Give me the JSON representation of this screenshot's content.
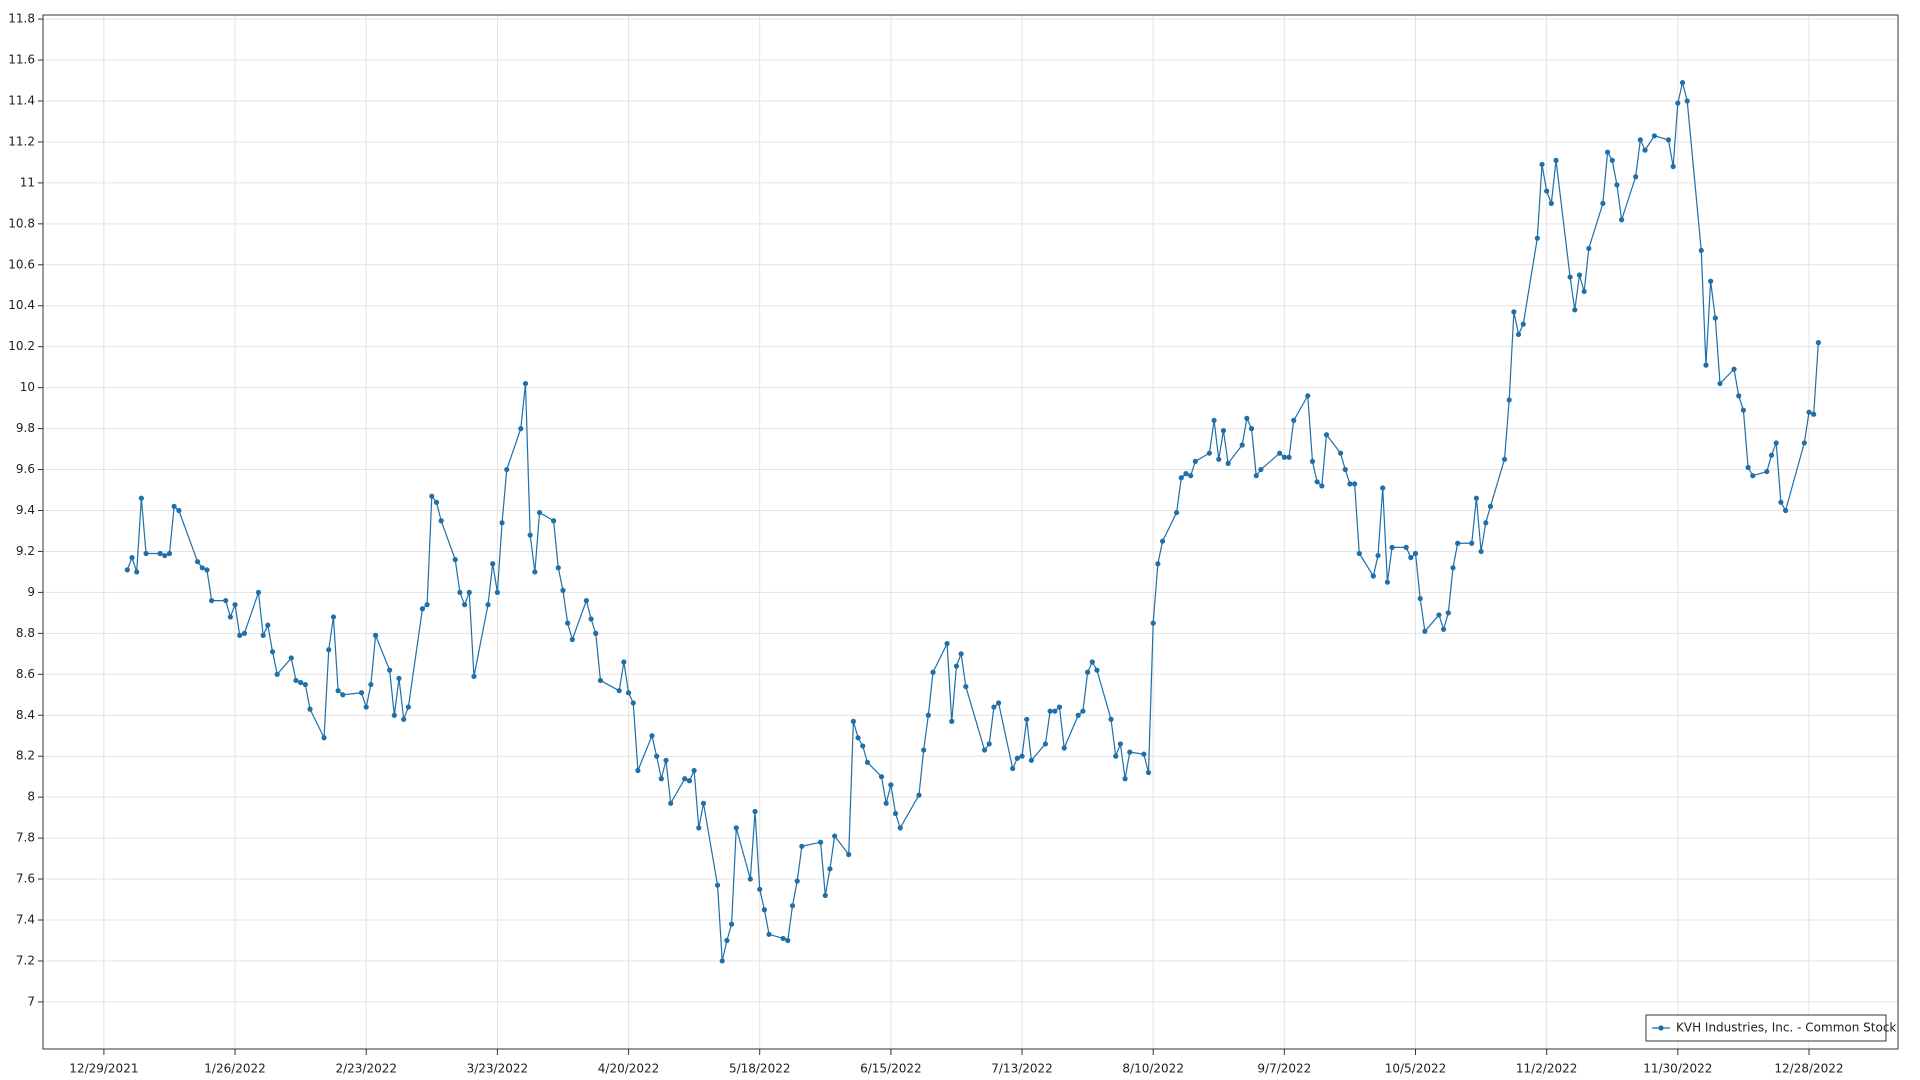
{
  "chart_data": {
    "type": "line",
    "x": [
      "1/3/2022",
      "1/4/2022",
      "1/5/2022",
      "1/6/2022",
      "1/7/2022",
      "1/10/2022",
      "1/11/2022",
      "1/12/2022",
      "1/13/2022",
      "1/14/2022",
      "1/18/2022",
      "1/19/2022",
      "1/20/2022",
      "1/21/2022",
      "1/24/2022",
      "1/25/2022",
      "1/26/2022",
      "1/27/2022",
      "1/28/2022",
      "1/31/2022",
      "2/1/2022",
      "2/2/2022",
      "2/3/2022",
      "2/4/2022",
      "2/7/2022",
      "2/8/2022",
      "2/9/2022",
      "2/10/2022",
      "2/11/2022",
      "2/14/2022",
      "2/15/2022",
      "2/16/2022",
      "2/17/2022",
      "2/18/2022",
      "2/22/2022",
      "2/23/2022",
      "2/24/2022",
      "2/25/2022",
      "2/28/2022",
      "3/1/2022",
      "3/2/2022",
      "3/3/2022",
      "3/4/2022",
      "3/7/2022",
      "3/8/2022",
      "3/9/2022",
      "3/10/2022",
      "3/11/2022",
      "3/14/2022",
      "3/15/2022",
      "3/16/2022",
      "3/17/2022",
      "3/18/2022",
      "3/21/2022",
      "3/22/2022",
      "3/23/2022",
      "3/24/2022",
      "3/25/2022",
      "3/28/2022",
      "3/29/2022",
      "3/30/2022",
      "3/31/2022",
      "4/1/2022",
      "4/4/2022",
      "4/5/2022",
      "4/6/2022",
      "4/7/2022",
      "4/8/2022",
      "4/11/2022",
      "4/12/2022",
      "4/13/2022",
      "4/14/2022",
      "4/18/2022",
      "4/19/2022",
      "4/20/2022",
      "4/21/2022",
      "4/22/2022",
      "4/25/2022",
      "4/26/2022",
      "4/27/2022",
      "4/28/2022",
      "4/29/2022",
      "5/2/2022",
      "5/3/2022",
      "5/4/2022",
      "5/5/2022",
      "5/6/2022",
      "5/9/2022",
      "5/10/2022",
      "5/11/2022",
      "5/12/2022",
      "5/13/2022",
      "5/16/2022",
      "5/17/2022",
      "5/18/2022",
      "5/19/2022",
      "5/20/2022",
      "5/23/2022",
      "5/24/2022",
      "5/25/2022",
      "5/26/2022",
      "5/27/2022",
      "5/31/2022",
      "6/1/2022",
      "6/2/2022",
      "6/3/2022",
      "6/6/2022",
      "6/7/2022",
      "6/8/2022",
      "6/9/2022",
      "6/10/2022",
      "6/13/2022",
      "6/14/2022",
      "6/15/2022",
      "6/16/2022",
      "6/17/2022",
      "6/21/2022",
      "6/22/2022",
      "6/23/2022",
      "6/24/2022",
      "6/27/2022",
      "6/28/2022",
      "6/29/2022",
      "6/30/2022",
      "7/1/2022",
      "7/5/2022",
      "7/6/2022",
      "7/7/2022",
      "7/8/2022",
      "7/11/2022",
      "7/12/2022",
      "7/13/2022",
      "7/14/2022",
      "7/15/2022",
      "7/18/2022",
      "7/19/2022",
      "7/20/2022",
      "7/21/2022",
      "7/22/2022",
      "7/25/2022",
      "7/26/2022",
      "7/27/2022",
      "7/28/2022",
      "7/29/2022",
      "8/1/2022",
      "8/2/2022",
      "8/3/2022",
      "8/4/2022",
      "8/5/2022",
      "8/8/2022",
      "8/9/2022",
      "8/10/2022",
      "8/11/2022",
      "8/12/2022",
      "8/15/2022",
      "8/16/2022",
      "8/17/2022",
      "8/18/2022",
      "8/19/2022",
      "8/22/2022",
      "8/23/2022",
      "8/24/2022",
      "8/25/2022",
      "8/26/2022",
      "8/29/2022",
      "8/30/2022",
      "8/31/2022",
      "9/1/2022",
      "9/2/2022",
      "9/6/2022",
      "9/7/2022",
      "9/8/2022",
      "9/9/2022",
      "9/12/2022",
      "9/13/2022",
      "9/14/2022",
      "9/15/2022",
      "9/16/2022",
      "9/19/2022",
      "9/20/2022",
      "9/21/2022",
      "9/22/2022",
      "9/23/2022",
      "9/26/2022",
      "9/27/2022",
      "9/28/2022",
      "9/29/2022",
      "9/30/2022",
      "10/3/2022",
      "10/4/2022",
      "10/5/2022",
      "10/6/2022",
      "10/7/2022",
      "10/10/2022",
      "10/11/2022",
      "10/12/2022",
      "10/13/2022",
      "10/14/2022",
      "10/17/2022",
      "10/18/2022",
      "10/19/2022",
      "10/20/2022",
      "10/21/2022",
      "10/24/2022",
      "10/25/2022",
      "10/26/2022",
      "10/27/2022",
      "10/28/2022",
      "10/31/2022",
      "11/1/2022",
      "11/2/2022",
      "11/3/2022",
      "11/4/2022",
      "11/7/2022",
      "11/8/2022",
      "11/9/2022",
      "11/10/2022",
      "11/11/2022",
      "11/14/2022",
      "11/15/2022",
      "11/16/2022",
      "11/17/2022",
      "11/18/2022",
      "11/21/2022",
      "11/22/2022",
      "11/23/2022",
      "11/25/2022",
      "11/28/2022",
      "11/29/2022",
      "11/30/2022",
      "12/1/2022",
      "12/2/2022",
      "12/5/2022",
      "12/6/2022",
      "12/7/2022",
      "12/8/2022",
      "12/9/2022",
      "12/12/2022",
      "12/13/2022",
      "12/14/2022",
      "12/15/2022",
      "12/16/2022",
      "12/19/2022",
      "12/20/2022",
      "12/21/2022",
      "12/22/2022",
      "12/23/2022",
      "12/27/2022",
      "12/28/2022",
      "12/29/2022",
      "12/30/2022"
    ],
    "series": [
      {
        "name": "KVH Industries, Inc. - Common Stock",
        "color": "#1f6fa8",
        "values": [
          9.11,
          9.17,
          9.1,
          9.46,
          9.19,
          9.19,
          9.18,
          9.19,
          9.42,
          9.4,
          9.15,
          9.12,
          9.11,
          8.96,
          8.96,
          8.88,
          8.94,
          8.79,
          8.8,
          9.0,
          8.79,
          8.84,
          8.71,
          8.6,
          8.68,
          8.57,
          8.56,
          8.55,
          8.43,
          8.29,
          8.72,
          8.88,
          8.52,
          8.5,
          8.51,
          8.44,
          8.55,
          8.79,
          8.62,
          8.4,
          8.58,
          8.38,
          8.44,
          8.92,
          8.94,
          9.47,
          9.44,
          9.35,
          9.16,
          9.0,
          8.94,
          9.0,
          8.59,
          8.94,
          9.14,
          9.0,
          9.34,
          9.6,
          9.8,
          10.02,
          9.28,
          9.1,
          9.39,
          9.35,
          9.12,
          9.01,
          8.85,
          8.77,
          8.96,
          8.87,
          8.8,
          8.57,
          8.52,
          8.66,
          8.51,
          8.46,
          8.13,
          8.3,
          8.2,
          8.09,
          8.18,
          7.97,
          8.09,
          8.08,
          8.13,
          7.85,
          7.97,
          7.57,
          7.2,
          7.3,
          7.38,
          7.85,
          7.6,
          7.93,
          7.55,
          7.45,
          7.33,
          7.31,
          7.3,
          7.47,
          7.59,
          7.76,
          7.78,
          7.52,
          7.65,
          7.81,
          7.72,
          8.37,
          8.29,
          8.25,
          8.17,
          8.1,
          7.97,
          8.06,
          7.92,
          7.85,
          8.01,
          8.23,
          8.4,
          8.61,
          8.75,
          8.37,
          8.64,
          8.7,
          8.54,
          8.23,
          8.26,
          8.44,
          8.46,
          8.14,
          8.19,
          8.2,
          8.38,
          8.18,
          8.26,
          8.42,
          8.42,
          8.44,
          8.24,
          8.4,
          8.42,
          8.61,
          8.66,
          8.62,
          8.38,
          8.2,
          8.26,
          8.09,
          8.22,
          8.21,
          8.12,
          8.85,
          9.14,
          9.25,
          9.39,
          9.56,
          9.58,
          9.57,
          9.64,
          9.68,
          9.84,
          9.65,
          9.79,
          9.63,
          9.72,
          9.85,
          9.8,
          9.57,
          9.6,
          9.68,
          9.66,
          9.66,
          9.84,
          9.96,
          9.64,
          9.54,
          9.52,
          9.77,
          9.68,
          9.6,
          9.53,
          9.53,
          9.19,
          9.08,
          9.18,
          9.51,
          9.05,
          9.22,
          9.22,
          9.17,
          9.19,
          8.97,
          8.81,
          8.89,
          8.82,
          8.9,
          9.12,
          9.24,
          9.24,
          9.46,
          9.2,
          9.34,
          9.42,
          9.65,
          9.94,
          10.37,
          10.26,
          10.31,
          10.73,
          11.09,
          10.96,
          10.9,
          11.11,
          10.54,
          10.38,
          10.55,
          10.47,
          10.68,
          10.9,
          11.15,
          11.11,
          10.99,
          10.82,
          11.03,
          11.21,
          11.16,
          11.23,
          11.21,
          11.08,
          11.39,
          11.49,
          11.4,
          10.67,
          10.11,
          10.52,
          10.34,
          10.02,
          10.09,
          9.96,
          9.89,
          9.61,
          9.57,
          9.59,
          9.67,
          9.73,
          9.44,
          9.4,
          9.73,
          9.88,
          9.87,
          10.22
        ]
      }
    ],
    "xlim": [
      "12/16/2021",
      "1/16/2023"
    ],
    "xticks": [
      "12/29/2021",
      "1/26/2022",
      "2/23/2022",
      "3/23/2022",
      "4/20/2022",
      "5/18/2022",
      "6/15/2022",
      "7/13/2022",
      "8/10/2022",
      "9/7/2022",
      "10/5/2022",
      "11/2/2022",
      "11/30/2022",
      "12/28/2022"
    ],
    "ylim": [
      6.77,
      11.82
    ],
    "yticks": [
      7,
      7.2,
      7.4,
      7.6,
      7.8,
      8,
      8.2,
      8.4,
      8.6,
      8.8,
      9,
      9.2,
      9.4,
      9.6,
      9.8,
      10,
      10.2,
      10.4,
      10.6,
      10.8,
      11,
      11.2,
      11.4,
      11.6,
      11.8
    ],
    "grid": true,
    "legend": "lower right"
  }
}
